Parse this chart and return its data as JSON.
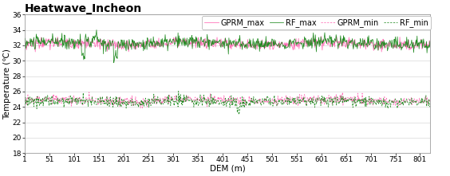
{
  "title": "Heatwave_Incheon",
  "xlabel": "DEM (m)",
  "ylabel": "Temperature (℃)",
  "xlim": [
    1,
    821
  ],
  "ylim": [
    18,
    36
  ],
  "yticks": [
    18,
    20,
    22,
    24,
    26,
    28,
    30,
    32,
    34,
    36
  ],
  "xticks": [
    1,
    51,
    101,
    151,
    201,
    251,
    301,
    351,
    401,
    451,
    501,
    551,
    601,
    651,
    701,
    751,
    801
  ],
  "n_points": 821,
  "rf_max_base": 32.3,
  "rf_max_noise": 0.45,
  "gprm_max_base": 32.2,
  "gprm_max_noise": 0.35,
  "rf_min_base": 24.7,
  "rf_min_noise": 0.35,
  "gprm_min_base": 24.85,
  "gprm_min_noise": 0.3,
  "color_gprm": "#FF69B4",
  "color_rf": "#228B22",
  "legend_entries": [
    "GPRM_max",
    "RF_max",
    "GPRM_min",
    "RF_min"
  ],
  "title_fontsize": 10,
  "axis_fontsize": 7.5,
  "tick_fontsize": 6.5,
  "legend_fontsize": 7,
  "linewidth": 0.55
}
